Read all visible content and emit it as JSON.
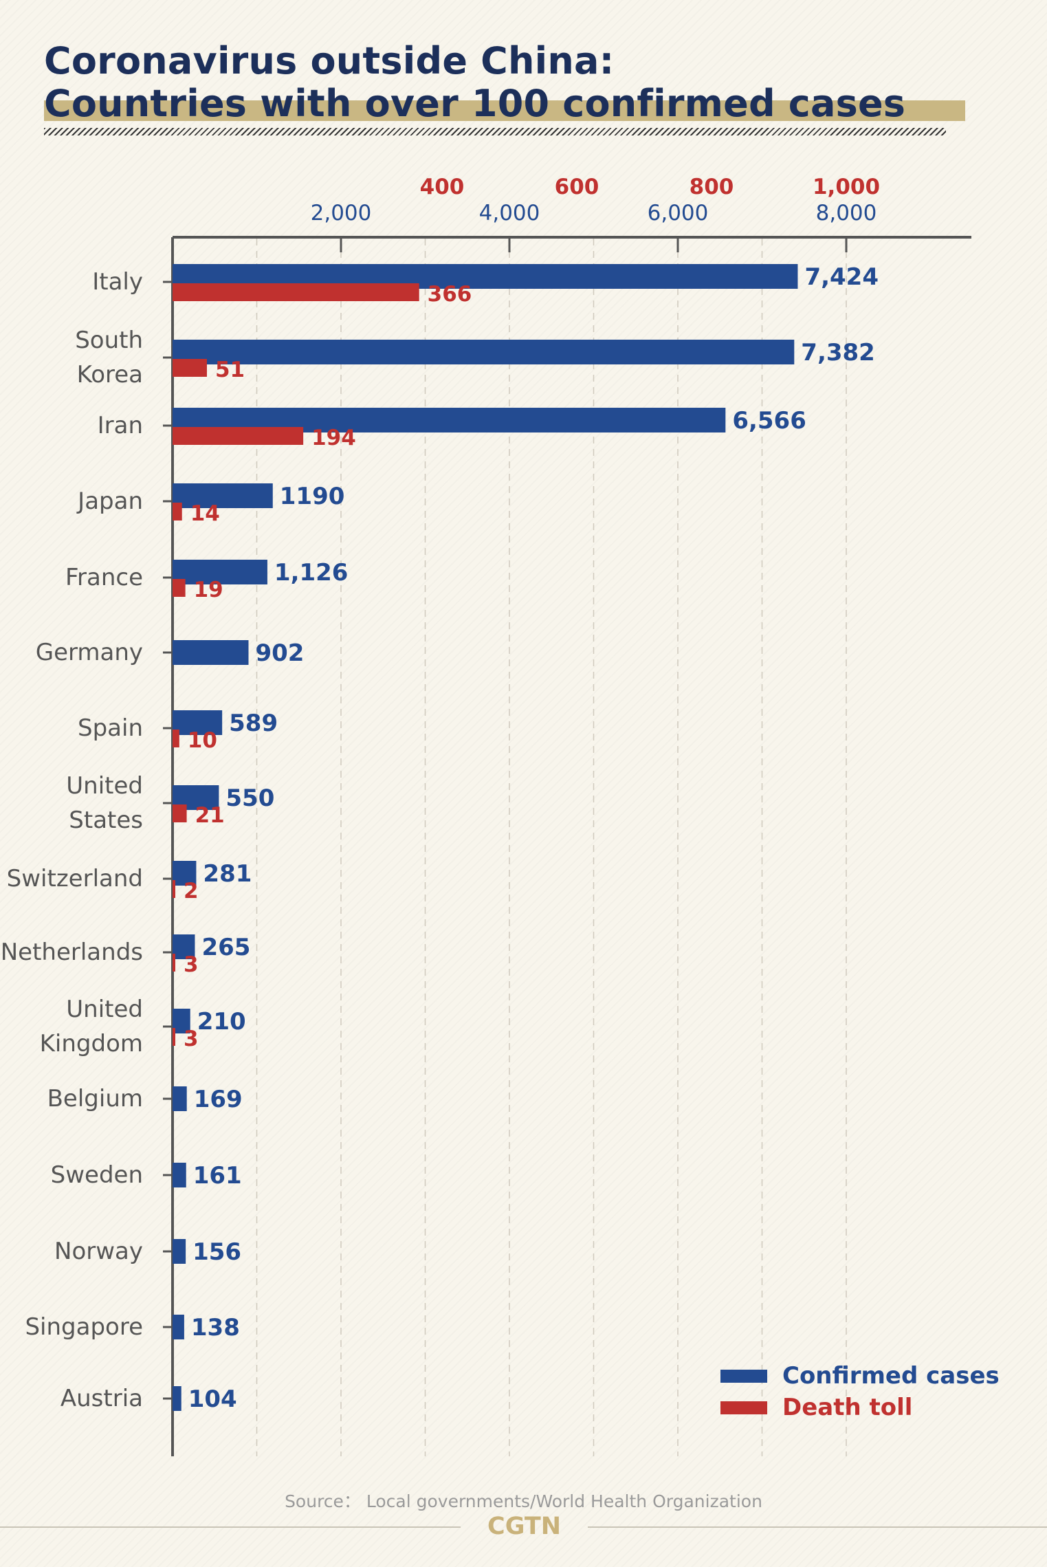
{
  "title": {
    "line1": "Coronavirus outside China:",
    "line2": "Countries with over 100 confirmed cases"
  },
  "colors": {
    "confirmed": "#234b91",
    "deaths": "#c0312f",
    "axis": "#555555",
    "category_label": "#555555",
    "title": "#1c2f5a",
    "highlight": "#c9b783",
    "brand": "#c9b27a"
  },
  "legend": {
    "confirmed": "Confirmed cases",
    "deaths": "Death toll"
  },
  "source": "Source： Local governments/World Health Organization",
  "brand": "CGTN",
  "chart_data": {
    "type": "bar",
    "orientation": "horizontal",
    "grid": true,
    "legend_position": "bottom-right",
    "categories": [
      "Italy",
      "South\nKorea",
      "Iran",
      "Japan",
      "France",
      "Germany",
      "Spain",
      "United\nStates",
      "Switzerland",
      "Netherlands",
      "United\nKingdom",
      "Belgium",
      "Sweden",
      "Norway",
      "Singapore",
      "Austria"
    ],
    "series": [
      {
        "name": "Confirmed cases",
        "axis": "bottom",
        "values": [
          7424,
          7382,
          6566,
          1190,
          1126,
          902,
          589,
          550,
          281,
          265,
          210,
          169,
          161,
          156,
          138,
          104
        ],
        "labels": [
          "7,424",
          "7,382",
          "6,566",
          "1190",
          "1,126",
          "902",
          "589",
          "550",
          "281",
          "265",
          "210",
          "169",
          "161",
          "156",
          "138",
          "104"
        ]
      },
      {
        "name": "Death toll",
        "axis": "top",
        "values": [
          366,
          51,
          194,
          14,
          19,
          null,
          10,
          21,
          2,
          3,
          3,
          null,
          null,
          null,
          null,
          null
        ],
        "labels": [
          "366",
          "51",
          "194",
          "14",
          "19",
          null,
          "10",
          "21",
          "2",
          "3",
          "3",
          null,
          null,
          null,
          null,
          null
        ]
      }
    ],
    "axes": {
      "confirmed": {
        "ticks": [
          2000,
          4000,
          6000,
          8000
        ],
        "tick_labels": [
          "2,000",
          "4,000",
          "6,000",
          "8,000"
        ],
        "range": [
          0,
          9500
        ]
      },
      "deaths": {
        "ticks": [
          400,
          600,
          800,
          1000
        ],
        "tick_labels": [
          "400",
          "600",
          "800",
          "1,000"
        ],
        "range": [
          0,
          1187.5
        ]
      }
    }
  }
}
